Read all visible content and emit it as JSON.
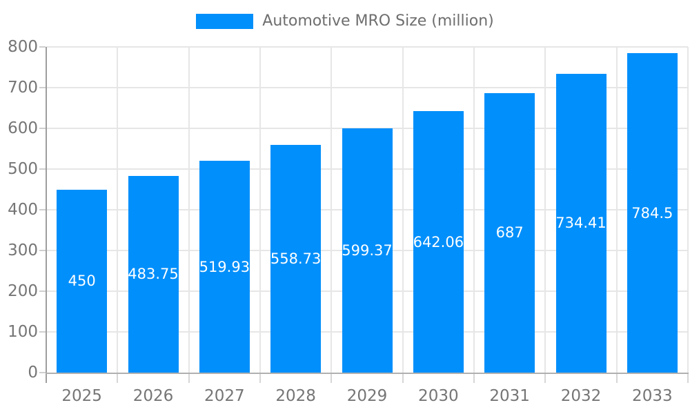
{
  "legend": {
    "label": "Automotive MRO Size (million)"
  },
  "chart_data": {
    "type": "bar",
    "title": "Automotive MRO Size (million)",
    "series_name": "Automotive MRO Size (million)",
    "categories": [
      "2025",
      "2026",
      "2027",
      "2028",
      "2029",
      "2030",
      "2031",
      "2032",
      "2033"
    ],
    "values": [
      450,
      483.75,
      519.93,
      558.73,
      599.37,
      642.06,
      687,
      734.41,
      784.5
    ],
    "value_labels": [
      "450",
      "483.75",
      "519.93",
      "558.73",
      "599.37",
      "642.06",
      "687",
      "734.41",
      "784.5"
    ],
    "xlabel": "",
    "ylabel": "",
    "ylim": [
      0,
      800
    ],
    "yticks": [
      0,
      100,
      200,
      300,
      400,
      500,
      600,
      700,
      800
    ],
    "grid": true,
    "legend_position": "top"
  },
  "colors": {
    "bar": "#008FFB",
    "value_label": "#ffffff",
    "gridline": "#e6e6e6",
    "y_axis_line": "#9e9e9e",
    "x_axis_line": "#b0b0b0",
    "y_tick": "#cfcfcf",
    "x_tick": "#d6d6d6",
    "tick_label": "#757575",
    "legend_text": "#6e6e6e",
    "background": "#ffffff"
  }
}
